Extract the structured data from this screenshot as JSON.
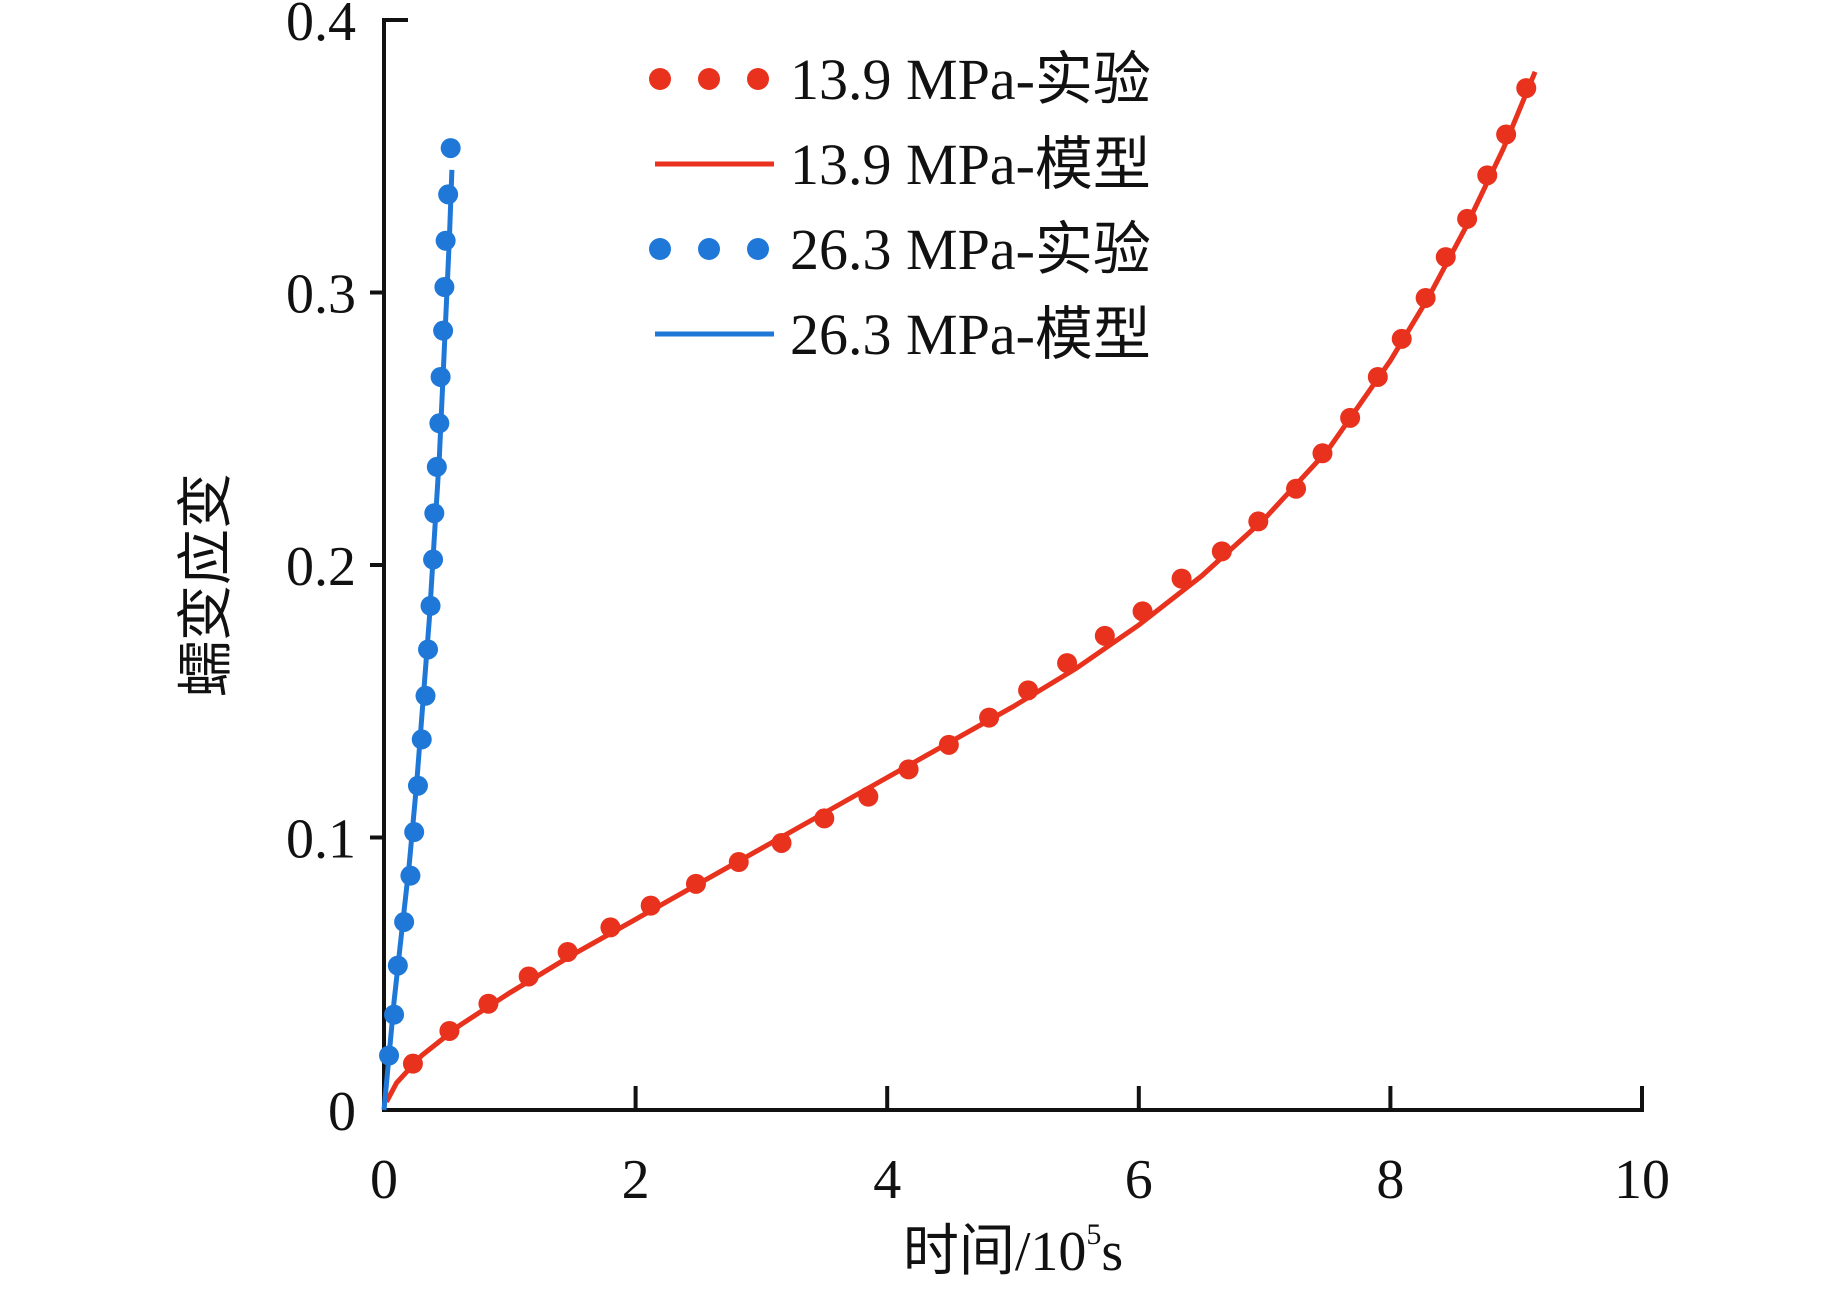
{
  "chart_data": {
    "type": "line",
    "title": "",
    "xlabel": "时间/10",
    "xlabel_sup": "5",
    "xlabel_suffix": "s",
    "ylabel": "蠕变应变",
    "xlim": [
      0,
      10
    ],
    "ylim": [
      0,
      0.4
    ],
    "xticks": [
      "0",
      "2",
      "4",
      "6",
      "8",
      "10"
    ],
    "yticks": [
      "0",
      "0.1",
      "0.2",
      "0.3",
      "0.4"
    ],
    "grid": false,
    "legend_position": "top-center",
    "series": [
      {
        "name": "13.9 MPa-实验",
        "kind": "scatter",
        "color": "#e8321e",
        "x": [
          0.23,
          0.52,
          0.83,
          1.15,
          1.46,
          1.8,
          2.12,
          2.48,
          2.82,
          3.16,
          3.5,
          3.85,
          4.17,
          4.49,
          4.81,
          5.12,
          5.43,
          5.73,
          6.03,
          6.34,
          6.66,
          6.95,
          7.25,
          7.46,
          7.68,
          7.9,
          8.09,
          8.28,
          8.44,
          8.61,
          8.77,
          8.92,
          9.08
        ],
        "y": [
          0.017,
          0.029,
          0.039,
          0.049,
          0.058,
          0.067,
          0.075,
          0.083,
          0.091,
          0.098,
          0.107,
          0.115,
          0.125,
          0.134,
          0.144,
          0.154,
          0.164,
          0.174,
          0.183,
          0.195,
          0.205,
          0.216,
          0.228,
          0.241,
          0.254,
          0.269,
          0.283,
          0.298,
          0.313,
          0.327,
          0.343,
          0.358,
          0.375
        ]
      },
      {
        "name": "13.9 MPa-模型",
        "kind": "line",
        "color": "#e8321e",
        "x": [
          0.02,
          0.1,
          0.3,
          0.6,
          1.0,
          1.5,
          2.0,
          2.5,
          3.0,
          3.5,
          4.0,
          4.5,
          5.0,
          5.5,
          6.0,
          6.5,
          7.0,
          7.5,
          8.0,
          8.3,
          8.6,
          8.9,
          9.15
        ],
        "y": [
          0.003,
          0.01,
          0.02,
          0.031,
          0.043,
          0.057,
          0.07,
          0.083,
          0.096,
          0.109,
          0.122,
          0.135,
          0.148,
          0.162,
          0.178,
          0.196,
          0.217,
          0.242,
          0.275,
          0.298,
          0.324,
          0.353,
          0.381
        ]
      },
      {
        "name": "26.3 MPa-实验",
        "kind": "scatter",
        "color": "#1f78d8",
        "x": [
          0.04,
          0.08,
          0.11,
          0.16,
          0.21,
          0.24,
          0.27,
          0.3,
          0.33,
          0.35,
          0.37,
          0.39,
          0.4,
          0.42,
          0.44,
          0.45,
          0.47,
          0.48,
          0.49,
          0.51,
          0.53
        ],
        "y": [
          0.02,
          0.035,
          0.053,
          0.069,
          0.086,
          0.102,
          0.119,
          0.136,
          0.152,
          0.169,
          0.185,
          0.202,
          0.219,
          0.236,
          0.252,
          0.269,
          0.286,
          0.302,
          0.319,
          0.336,
          0.353
        ]
      },
      {
        "name": "26.3 MPa-模型",
        "kind": "line",
        "color": "#1f78d8",
        "x": [
          0.0,
          0.03,
          0.08,
          0.14,
          0.2,
          0.26,
          0.31,
          0.36,
          0.4,
          0.44,
          0.48,
          0.52,
          0.54
        ],
        "y": [
          0.0,
          0.015,
          0.04,
          0.065,
          0.09,
          0.12,
          0.15,
          0.18,
          0.21,
          0.24,
          0.28,
          0.32,
          0.345
        ]
      }
    ]
  }
}
